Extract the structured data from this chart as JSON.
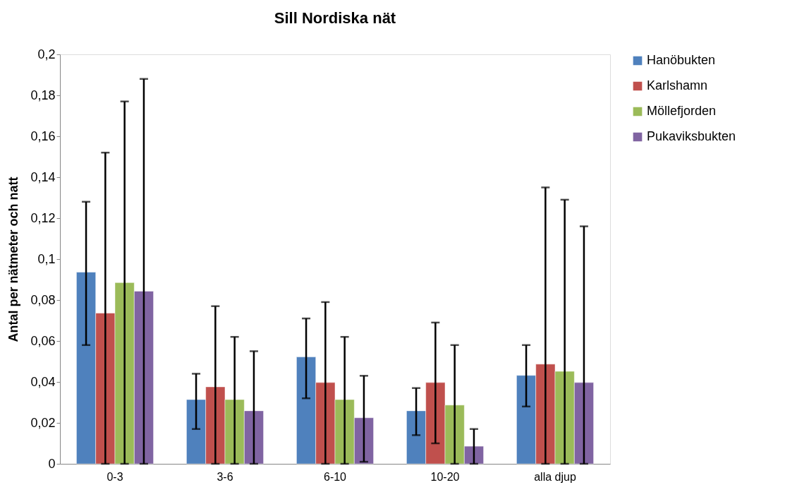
{
  "chart_data": {
    "type": "bar",
    "title": "Sill Nordiska nät",
    "ylabel": "Antal per nätmeter och natt",
    "categories": [
      "0-3",
      "3-6",
      "6-10",
      "10-20",
      "alla djup"
    ],
    "series": [
      {
        "name": "Hanöbukten",
        "color": "#4f81bd",
        "values": [
          0.0936,
          0.0314,
          0.0522,
          0.0259,
          0.0432
        ],
        "errors": [
          [
            0.058,
            0.128
          ],
          [
            0.017,
            0.044
          ],
          [
            0.032,
            0.071
          ],
          [
            0.014,
            0.037
          ],
          [
            0.028,
            0.058
          ]
        ]
      },
      {
        "name": "Karlshamn",
        "color": "#c0504d",
        "values": [
          0.0736,
          0.0376,
          0.0397,
          0.0397,
          0.0487
        ],
        "errors": [
          [
            0,
            0.152
          ],
          [
            0,
            0.077
          ],
          [
            0,
            0.079
          ],
          [
            0.01,
            0.069
          ],
          [
            0,
            0.135
          ]
        ]
      },
      {
        "name": "Möllefjorden",
        "color": "#9bbb59",
        "values": [
          0.0885,
          0.0314,
          0.0314,
          0.0287,
          0.0452
        ],
        "errors": [
          [
            0,
            0.177
          ],
          [
            0,
            0.062
          ],
          [
            0,
            0.062
          ],
          [
            0,
            0.058
          ],
          [
            0,
            0.129
          ]
        ]
      },
      {
        "name": "Pukaviksbukten",
        "color": "#8064a2",
        "values": [
          0.0843,
          0.0259,
          0.0225,
          0.0086,
          0.0397
        ],
        "errors": [
          [
            0,
            0.188
          ],
          [
            0,
            0.055
          ],
          [
            0.001,
            0.043
          ],
          [
            0,
            0.017
          ],
          [
            0,
            0.116
          ]
        ]
      }
    ],
    "ylim": [
      0,
      0.2
    ],
    "yticks": [
      {
        "value": 0,
        "label": "0"
      },
      {
        "value": 0.02,
        "label": "0,02"
      },
      {
        "value": 0.04,
        "label": "0,04"
      },
      {
        "value": 0.06,
        "label": "0,06"
      },
      {
        "value": 0.08,
        "label": "0,08"
      },
      {
        "value": 0.1,
        "label": "0,1"
      },
      {
        "value": 0.12,
        "label": "0,12"
      },
      {
        "value": 0.14,
        "label": "0,14"
      },
      {
        "value": 0.16,
        "label": "0,16"
      },
      {
        "value": 0.18,
        "label": "0,18"
      },
      {
        "value": 0.2,
        "label": "0,2"
      }
    ],
    "grid": false,
    "legend": "right"
  }
}
